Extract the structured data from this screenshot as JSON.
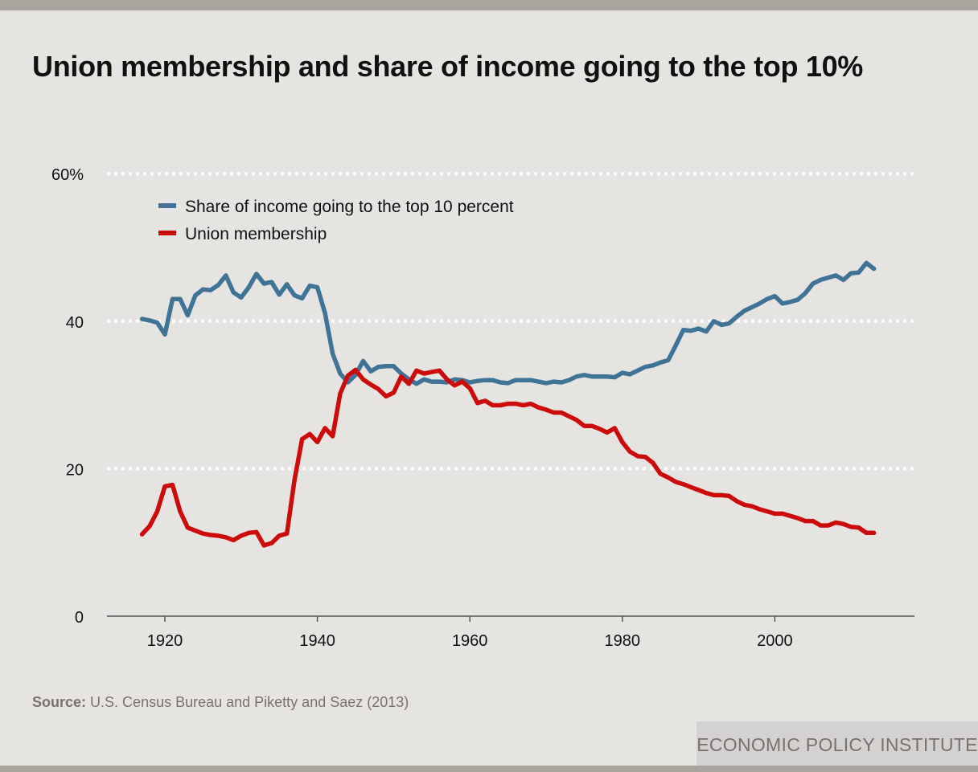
{
  "title": "Union membership and share of income going to the top 10%",
  "source_label": "Source:",
  "source_text": "U.S. Census Bureau and Piketty and Saez (2013)",
  "brand": "ECONOMIC POLICY INSTITUTE",
  "chart_data": {
    "type": "line",
    "title": "Union membership and share of income going to the top 10%",
    "xlabel": "",
    "ylabel": "",
    "xlim": [
      1912,
      2030
    ],
    "ylim": [
      0,
      60
    ],
    "x_ticks": [
      1920,
      1940,
      1960,
      1980,
      2000
    ],
    "x_tick_labels": [
      "1920",
      "1940",
      "1960",
      "1980",
      "2000"
    ],
    "y_ticks": [
      0,
      20,
      40,
      60
    ],
    "y_tick_labels": [
      "0",
      "20",
      "40",
      "60%"
    ],
    "grid": "horizontal dotted",
    "legend_placement": "top-left",
    "x": [
      1917,
      1918,
      1919,
      1920,
      1921,
      1922,
      1923,
      1924,
      1925,
      1926,
      1927,
      1928,
      1929,
      1930,
      1931,
      1932,
      1933,
      1934,
      1935,
      1936,
      1937,
      1938,
      1939,
      1940,
      1941,
      1942,
      1943,
      1944,
      1945,
      1946,
      1947,
      1948,
      1949,
      1950,
      1951,
      1952,
      1953,
      1954,
      1955,
      1956,
      1957,
      1958,
      1959,
      1960,
      1961,
      1962,
      1963,
      1964,
      1965,
      1966,
      1967,
      1968,
      1969,
      1970,
      1971,
      1972,
      1973,
      1974,
      1975,
      1976,
      1977,
      1978,
      1979,
      1980,
      1981,
      1982,
      1983,
      1984,
      1985,
      1986,
      1987,
      1988,
      1989,
      1990,
      1991,
      1992,
      1993,
      1994,
      1995,
      1996,
      1997,
      1998,
      1999,
      2000,
      2001,
      2002,
      2003,
      2004,
      2005,
      2006,
      2007,
      2008,
      2009,
      2010,
      2011,
      2012,
      2013
    ],
    "series": [
      {
        "name": "Share of income going to the top 10 percent",
        "color": "#3f7497",
        "values": [
          40.3,
          40.1,
          39.8,
          38.2,
          43.0,
          43.0,
          40.8,
          43.5,
          44.3,
          44.2,
          44.9,
          46.2,
          43.9,
          43.2,
          44.6,
          46.4,
          45.1,
          45.3,
          43.6,
          45.0,
          43.5,
          43.1,
          44.8,
          44.6,
          41.1,
          35.6,
          32.9,
          31.7,
          32.7,
          34.6,
          33.2,
          33.8,
          33.9,
          33.9,
          32.9,
          32.1,
          31.5,
          32.1,
          31.8,
          31.8,
          31.7,
          32.1,
          32.0,
          31.7,
          31.9,
          32.0,
          32.0,
          31.7,
          31.6,
          32.0,
          32.0,
          32.0,
          31.8,
          31.6,
          31.8,
          31.7,
          32.0,
          32.5,
          32.7,
          32.5,
          32.5,
          32.5,
          32.4,
          33.0,
          32.8,
          33.3,
          33.8,
          34.0,
          34.4,
          34.7,
          36.7,
          38.8,
          38.7,
          39.0,
          38.6,
          40.0,
          39.5,
          39.7,
          40.6,
          41.4,
          41.9,
          42.4,
          43.0,
          43.4,
          42.4,
          42.6,
          42.9,
          43.8,
          45.1,
          45.6,
          45.9,
          46.2,
          45.6,
          46.5,
          46.6,
          47.9,
          47.1
        ]
      },
      {
        "name": "Union membership",
        "color": "#cc0b0b",
        "values": [
          11.1,
          12.2,
          14.2,
          17.6,
          17.8,
          14.2,
          12.0,
          11.6,
          11.2,
          11.0,
          10.9,
          10.7,
          10.3,
          10.9,
          11.3,
          11.4,
          9.6,
          9.9,
          10.9,
          11.2,
          18.5,
          24.0,
          24.7,
          23.6,
          25.5,
          24.4,
          30.2,
          32.6,
          33.4,
          32.1,
          31.4,
          30.8,
          29.8,
          30.3,
          32.5,
          31.5,
          33.3,
          32.9,
          33.1,
          33.3,
          32.1,
          31.3,
          31.8,
          30.9,
          28.9,
          29.2,
          28.6,
          28.6,
          28.8,
          28.8,
          28.6,
          28.8,
          28.3,
          28.0,
          27.6,
          27.6,
          27.1,
          26.6,
          25.8,
          25.8,
          25.4,
          24.9,
          25.5,
          23.6,
          22.3,
          21.7,
          21.6,
          20.8,
          19.3,
          18.8,
          18.2,
          17.9,
          17.5,
          17.1,
          16.7,
          16.4,
          16.4,
          16.3,
          15.6,
          15.1,
          14.9,
          14.5,
          14.2,
          13.9,
          13.9,
          13.6,
          13.3,
          12.9,
          12.9,
          12.3,
          12.3,
          12.7,
          12.5,
          12.1,
          12.0,
          11.3,
          11.3
        ]
      }
    ]
  }
}
